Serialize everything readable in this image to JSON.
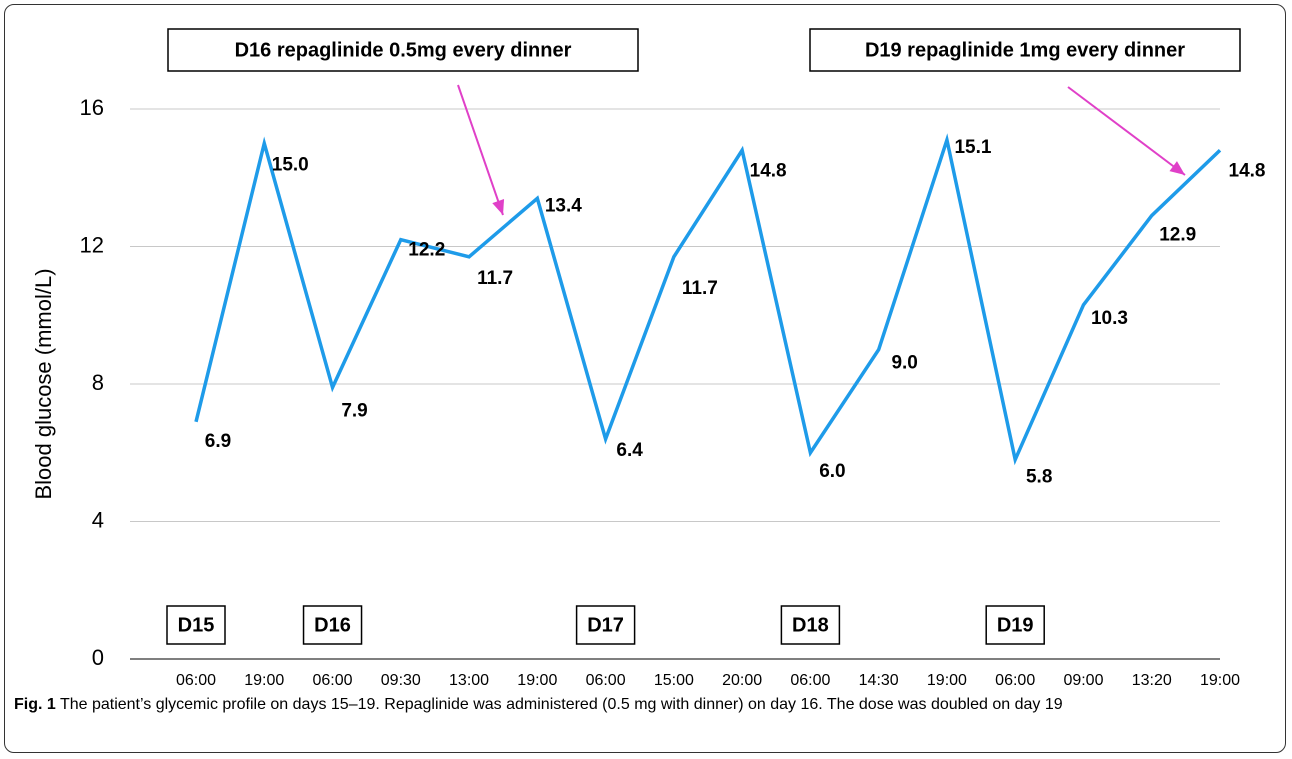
{
  "chart_data": {
    "type": "line",
    "y_label": "Blood glucose (mmol/L)",
    "categories": [
      "06:00",
      "19:00",
      "06:00",
      "09:30",
      "13:00",
      "19:00",
      "06:00",
      "15:00",
      "20:00",
      "06:00",
      "14:30",
      "19:00",
      "06:00",
      "09:00",
      "13:20",
      "19:00"
    ],
    "series": [
      {
        "name": "Blood glucose",
        "color": "#1e9be9",
        "values": [
          6.9,
          15.0,
          7.9,
          12.2,
          11.7,
          13.4,
          6.4,
          11.7,
          14.8,
          6.0,
          9.0,
          15.1,
          5.8,
          10.3,
          12.9,
          14.8
        ],
        "value_labels": [
          "6.9",
          "15.0",
          "7.9",
          "12.2",
          "11.7",
          "13.4",
          "6.4",
          "11.7",
          "14.8",
          "6.0",
          "9.0",
          "15.1",
          "5.8",
          "10.3",
          "12.9",
          "14.8"
        ]
      }
    ],
    "ylim": [
      0,
      16
    ],
    "yticks": [
      0,
      4,
      8,
      12,
      16
    ],
    "grid": true,
    "day_labels": [
      "D15",
      "D16",
      "D17",
      "D18",
      "D19"
    ],
    "annotations": [
      "D16 repaglinide 0.5mg every dinner",
      "D19 repaglinide 1mg every dinner"
    ],
    "annotation_color": "#e040c8"
  },
  "caption": {
    "label": "Fig. 1",
    "text": "The patient’s glycemic profile on days 15–19. Repaglinide was administered (0.5 mg with dinner) on day 16. The dose was doubled on day 19"
  }
}
